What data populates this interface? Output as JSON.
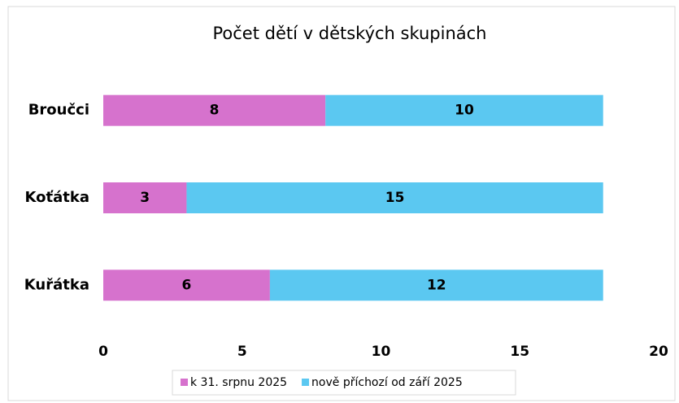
{
  "chart_data": {
    "type": "stacked_bar_horizontal",
    "title": "Počet dětí v dětských skupinách",
    "categories": [
      "Broučci",
      "Koťátka",
      "Kuřátka"
    ],
    "series": [
      {
        "name": "k 31. srpnu 2025",
        "color": "#d672cd",
        "values": [
          8,
          3,
          6
        ]
      },
      {
        "name": "nově příchozí od září 2025",
        "color": "#5bc8f1",
        "values": [
          10,
          15,
          12
        ]
      }
    ],
    "xlim": [
      0,
      20
    ],
    "xticks": [
      0,
      5,
      10,
      15,
      20
    ],
    "grid": false,
    "legend": "bottom"
  }
}
